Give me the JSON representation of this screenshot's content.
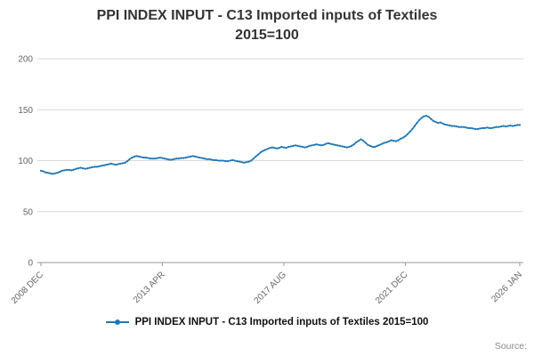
{
  "title_line1": "PPI INDEX INPUT - C13 Imported inputs of Textiles",
  "title_line2": "2015=100",
  "legend_label": "PPI INDEX INPUT - C13 Imported inputs of Textiles 2015=100",
  "source_label": "Source:",
  "chart_data": {
    "type": "line",
    "title": "PPI INDEX INPUT - C13 Imported inputs of Textiles 2015=100",
    "series_name": "PPI INDEX INPUT - C13 Imported inputs of Textiles 2015=100",
    "color": "#1f77b4",
    "grid": "horizontal",
    "legend_position": "bottom",
    "ylim": [
      0,
      200
    ],
    "yticks": [
      0,
      50,
      100,
      150,
      200
    ],
    "x_start": "2008 DEC",
    "x_end": "2026 JAN",
    "x_frequency": "monthly",
    "xtick_labels": [
      "2008 DEC",
      "2013 APR",
      "2017 AUG",
      "2021 DEC",
      "2026 JAN"
    ],
    "xtick_positions": [
      0,
      52,
      104,
      156,
      205
    ],
    "values": [
      90,
      89.5,
      88.5,
      88,
      87.5,
      87,
      87.5,
      88,
      89,
      90,
      90.5,
      91,
      91,
      90.5,
      91,
      92,
      92.5,
      93,
      92.5,
      92,
      92.5,
      93,
      93.5,
      94,
      94,
      94.5,
      95,
      95.5,
      96,
      96.5,
      97,
      96.5,
      96,
      96.5,
      97,
      97.5,
      98,
      99.5,
      101.5,
      103,
      104,
      104.5,
      104,
      103.5,
      103,
      103,
      102.5,
      102,
      102,
      102,
      102.5,
      103,
      102.5,
      102,
      101.5,
      101,
      101,
      101.5,
      102,
      102,
      102.5,
      102.5,
      103,
      103.5,
      104,
      104.5,
      104,
      103.5,
      103,
      102.5,
      102,
      101.5,
      101.5,
      101,
      100.5,
      100.5,
      100,
      100,
      100,
      99.5,
      99.5,
      100,
      100.5,
      100,
      99.5,
      99,
      98.5,
      98,
      98.5,
      99,
      100,
      102,
      104,
      106,
      108,
      109.5,
      110.5,
      111.5,
      112.5,
      113,
      112.5,
      112,
      112.5,
      113.5,
      113,
      112.5,
      113.5,
      114,
      114.5,
      115,
      114.5,
      114,
      113.5,
      113,
      113.5,
      114.5,
      115,
      115.5,
      116,
      115.5,
      115,
      115.5,
      116.5,
      117,
      116.5,
      116,
      115.5,
      115,
      114.5,
      114,
      113.5,
      113,
      113.5,
      114.5,
      116,
      118,
      119.5,
      121,
      119.5,
      117.5,
      115.5,
      114.5,
      113.5,
      113.5,
      114.5,
      115.5,
      116.5,
      117.5,
      118,
      119,
      120,
      119.5,
      119,
      120,
      121.5,
      122.5,
      124,
      126,
      128.5,
      131,
      134,
      137,
      140,
      142,
      143.5,
      144,
      143,
      141,
      139,
      138,
      137,
      137.5,
      136.5,
      135.5,
      135,
      134.5,
      134,
      134,
      133.5,
      133,
      133,
      133,
      132.5,
      132,
      132,
      131.5,
      131,
      131,
      131.5,
      132,
      132,
      132.5,
      132,
      132,
      132.5,
      133,
      133,
      133.5,
      134,
      133.5,
      134,
      134.5,
      134,
      134.5,
      135,
      135
    ]
  }
}
